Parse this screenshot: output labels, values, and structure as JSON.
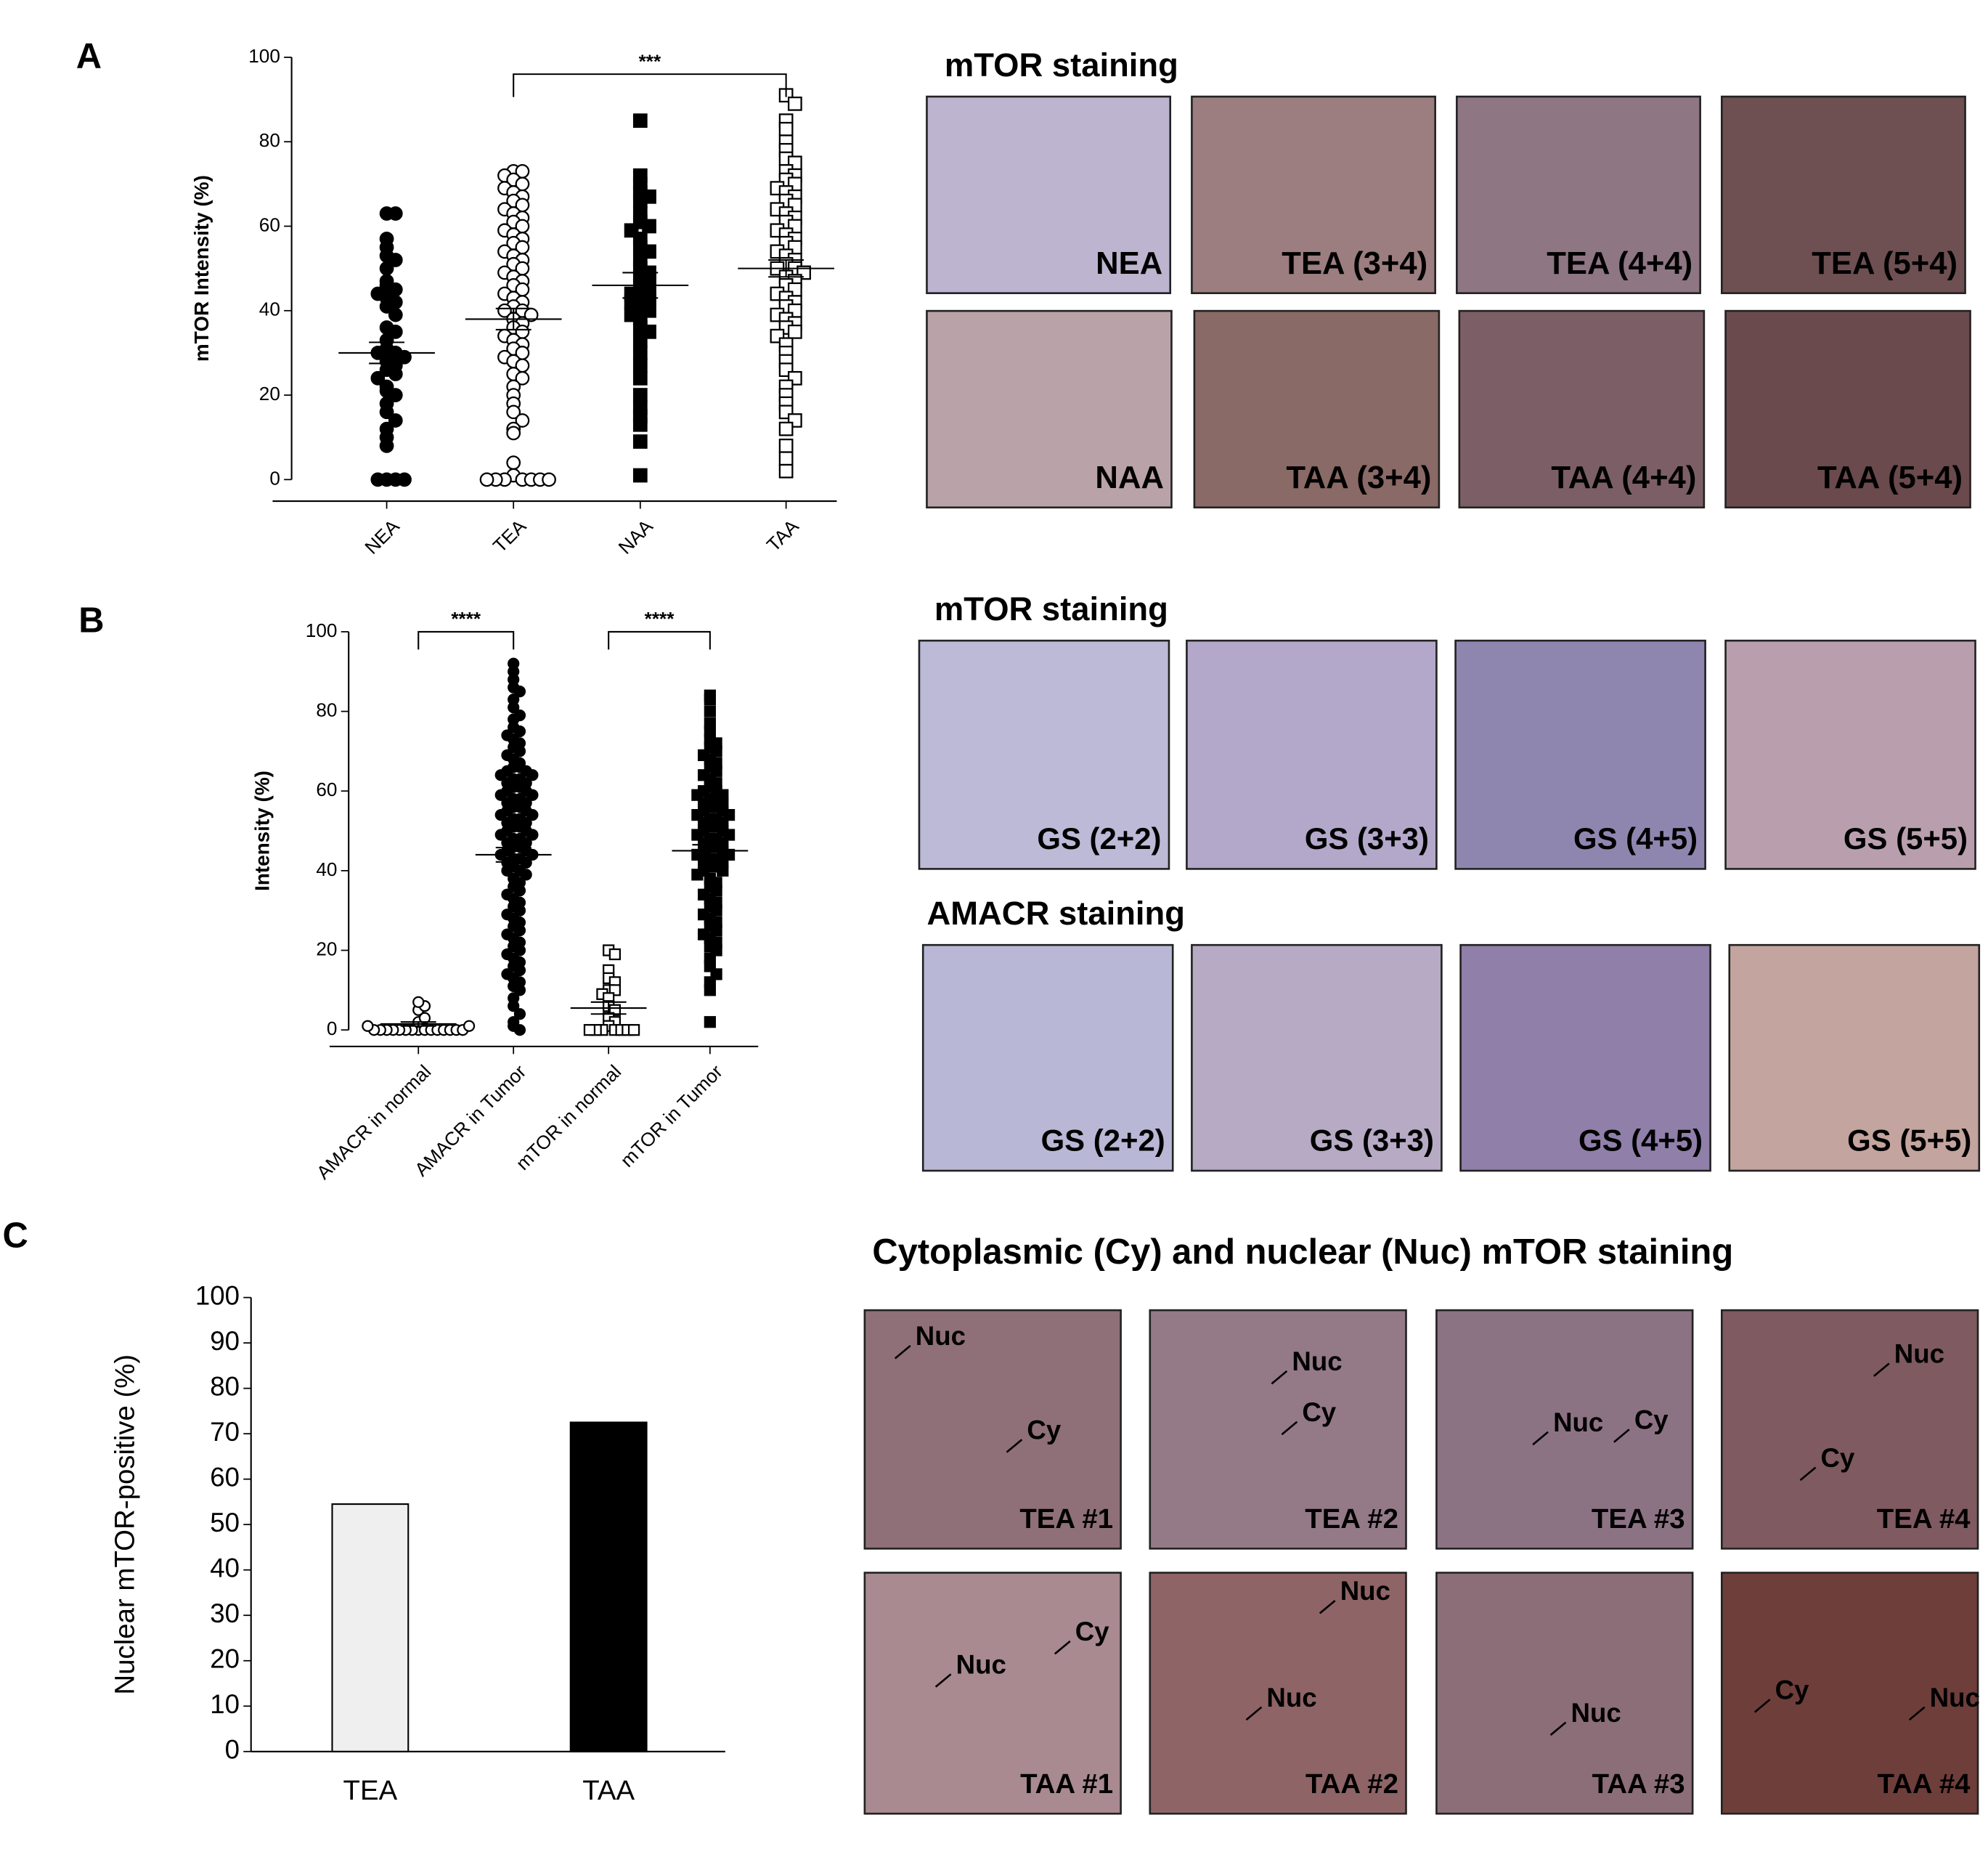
{
  "panel_labels": [
    "A",
    "B",
    "C"
  ],
  "chart_data": [
    {
      "type": "dot",
      "ylabel": "mTOR Intensity (%)",
      "categories": [
        "NEA",
        "TEA",
        "NAA",
        "TAA"
      ],
      "ylim": [
        0,
        100
      ],
      "yticks": [
        0,
        20,
        40,
        60,
        80,
        100
      ],
      "color": "#000000",
      "groups": [
        {
          "marker": "circle",
          "filled": true,
          "mean": 30,
          "sem": 2.5,
          "values": [
            63,
            63,
            57,
            55,
            53,
            52,
            50,
            47,
            46,
            45,
            44,
            43,
            42,
            41,
            39,
            36,
            35,
            33,
            31,
            30,
            30,
            29,
            28,
            27,
            26,
            25,
            24,
            22,
            21,
            20,
            18,
            16,
            14,
            12,
            10,
            8,
            0,
            0,
            0,
            0
          ]
        },
        {
          "marker": "circle",
          "filled": false,
          "mean": 38,
          "sem": 2.5,
          "values": [
            73,
            73,
            72,
            71,
            70,
            69,
            68,
            67,
            66,
            65,
            64,
            63,
            62,
            61,
            60,
            59,
            58,
            57,
            56,
            55,
            54,
            53,
            52,
            51,
            50,
            49,
            48,
            47,
            46,
            45,
            44,
            43,
            42,
            41,
            40,
            40,
            39,
            38,
            37,
            36,
            35,
            34,
            33,
            32,
            31,
            30,
            29,
            28,
            27,
            25,
            24,
            22,
            20,
            18,
            16,
            14,
            12,
            11,
            4,
            1,
            0,
            0,
            0,
            0,
            0,
            0,
            0
          ]
        },
        {
          "marker": "square",
          "filled": true,
          "mean": 46,
          "sem": 3,
          "values": [
            85,
            72,
            70,
            68,
            67,
            66,
            63,
            61,
            60,
            59,
            57,
            55,
            54,
            52,
            50,
            49,
            48,
            47,
            46,
            45,
            44,
            43,
            43,
            42,
            41,
            40,
            39,
            38,
            36,
            35,
            33,
            30,
            27,
            24,
            20,
            17,
            15,
            13,
            9,
            1
          ]
        },
        {
          "marker": "square",
          "filled": false,
          "mean": 50,
          "sem": 2,
          "values": [
            91,
            89,
            85,
            83,
            80,
            78,
            76,
            75,
            73,
            72,
            71,
            70,
            69,
            68,
            67,
            66,
            65,
            64,
            63,
            62,
            61,
            60,
            59,
            58,
            57,
            56,
            55,
            54,
            53,
            52,
            51,
            50,
            50,
            49,
            48,
            47,
            46,
            45,
            44,
            43,
            42,
            41,
            40,
            39,
            38,
            37,
            36,
            35,
            34,
            32,
            30,
            28,
            26,
            24,
            22,
            20,
            18,
            16,
            14,
            12,
            8,
            5,
            2
          ]
        }
      ],
      "brackets": [
        {
          "from": 1,
          "to": 3,
          "y": 96,
          "label": "***"
        }
      ]
    },
    {
      "type": "dot",
      "ylabel": "Intensity (%)",
      "categories": [
        "AMACR in normal",
        "AMACR in Tumor",
        "mTOR in normal",
        "mTOR in Tumor"
      ],
      "ylim": [
        0,
        100
      ],
      "yticks": [
        0,
        20,
        40,
        60,
        80,
        100
      ],
      "color": "#000000",
      "groups": [
        {
          "marker": "circle",
          "filled": false,
          "mean": 1.5,
          "sem": 0.5,
          "values": [
            0,
            0,
            0,
            0,
            0,
            0,
            0,
            0,
            0,
            0,
            0,
            0,
            0,
            0,
            0,
            1,
            1,
            2,
            3,
            5,
            6,
            7
          ]
        },
        {
          "marker": "circle",
          "filled": true,
          "mean": 44,
          "sem": 1.8,
          "values": [
            92,
            90,
            88,
            86,
            85,
            83,
            81,
            79,
            78,
            76,
            75,
            74,
            73,
            72,
            71,
            70,
            69,
            68,
            67,
            66,
            66,
            65,
            65,
            64,
            64,
            63,
            63,
            62,
            62,
            61,
            61,
            60,
            60,
            59,
            59,
            58,
            58,
            57,
            57,
            56,
            56,
            55,
            55,
            54,
            54,
            53,
            53,
            52,
            52,
            51,
            51,
            50,
            50,
            49,
            49,
            48,
            48,
            47,
            47,
            46,
            46,
            45,
            45,
            44,
            44,
            43,
            43,
            42,
            42,
            41,
            40,
            40,
            39,
            38,
            37,
            36,
            35,
            34,
            33,
            32,
            31,
            30,
            29,
            28,
            27,
            26,
            25,
            24,
            23,
            22,
            21,
            20,
            19,
            18,
            17,
            16,
            15,
            14,
            13,
            12,
            11,
            10,
            8,
            6,
            4,
            2,
            1,
            0
          ]
        },
        {
          "marker": "square",
          "filled": false,
          "mean": 5.5,
          "sem": 1.5,
          "values": [
            20,
            19,
            15,
            13,
            12,
            10,
            10,
            9,
            8,
            6,
            5,
            3,
            2,
            1,
            0,
            0,
            0,
            0,
            0,
            0,
            0
          ]
        },
        {
          "marker": "square",
          "filled": true,
          "mean": 45,
          "sem": 1.5,
          "values": [
            84,
            83,
            80,
            77,
            75,
            73,
            72,
            71,
            70,
            69,
            68,
            67,
            66,
            65,
            64,
            63,
            62,
            61,
            60,
            60,
            59,
            59,
            58,
            58,
            57,
            57,
            56,
            56,
            55,
            55,
            54,
            54,
            53,
            53,
            52,
            52,
            51,
            51,
            50,
            50,
            49,
            49,
            48,
            48,
            47,
            47,
            46,
            46,
            45,
            45,
            44,
            44,
            43,
            43,
            42,
            42,
            41,
            41,
            40,
            40,
            39,
            38,
            37,
            36,
            35,
            34,
            33,
            32,
            31,
            30,
            29,
            28,
            27,
            26,
            25,
            24,
            23,
            22,
            21,
            20,
            18,
            16,
            14,
            12,
            10,
            2
          ]
        }
      ],
      "brackets": [
        {
          "from": 0,
          "to": 1,
          "y": 100,
          "label": "****"
        },
        {
          "from": 2,
          "to": 3,
          "y": 100,
          "label": "****"
        }
      ]
    },
    {
      "type": "bar",
      "ylabel": "Nuclear mTOR-positive (%)",
      "categories": [
        "TEA",
        "TAA"
      ],
      "values": [
        54.5,
        72.5
      ],
      "colors": [
        "#efefef",
        "#000000"
      ],
      "ylim": [
        0,
        100
      ],
      "yticks": [
        0,
        10,
        20,
        30,
        40,
        50,
        60,
        70,
        80,
        90,
        100
      ]
    }
  ],
  "images": [
    {
      "title": "mTOR staining",
      "rows": [
        [
          "NEA",
          "TEA (3+4)",
          "TEA (4+4)",
          "TEA (5+4)"
        ],
        [
          "NAA",
          "TAA (3+4)",
          "TAA (4+4)",
          "TAA (5+4)"
        ]
      ]
    },
    {
      "title": "mTOR staining",
      "rows": [
        [
          "GS (2+2)",
          "GS (3+3)",
          "GS (4+5)",
          "GS (5+5)"
        ]
      ]
    },
    {
      "title": "AMACR staining",
      "rows": [
        [
          "GS (2+2)",
          "GS (3+3)",
          "GS (4+5)",
          "GS (5+5)"
        ]
      ]
    },
    {
      "title": "Cytoplasmic (Cy) and nuclear (Nuc) mTOR staining",
      "rows": [
        [
          "TEA #1",
          "TEA #2",
          "TEA #3",
          "TEA #4"
        ],
        [
          "TAA #1",
          "TAA #2",
          "TAA #3",
          "TAA #4"
        ]
      ],
      "notes": [
        [
          [
            "Nuc",
            "Cy"
          ],
          [
            "Nuc",
            "Cy"
          ],
          [
            "Nuc",
            "Cy"
          ],
          [
            "Nuc",
            "Cy"
          ]
        ],
        [
          [
            "Nuc",
            "Cy"
          ],
          [
            "Nuc",
            "Nuc"
          ],
          [
            "Nuc"
          ],
          [
            "Cy",
            "Nuc"
          ]
        ]
      ]
    }
  ]
}
